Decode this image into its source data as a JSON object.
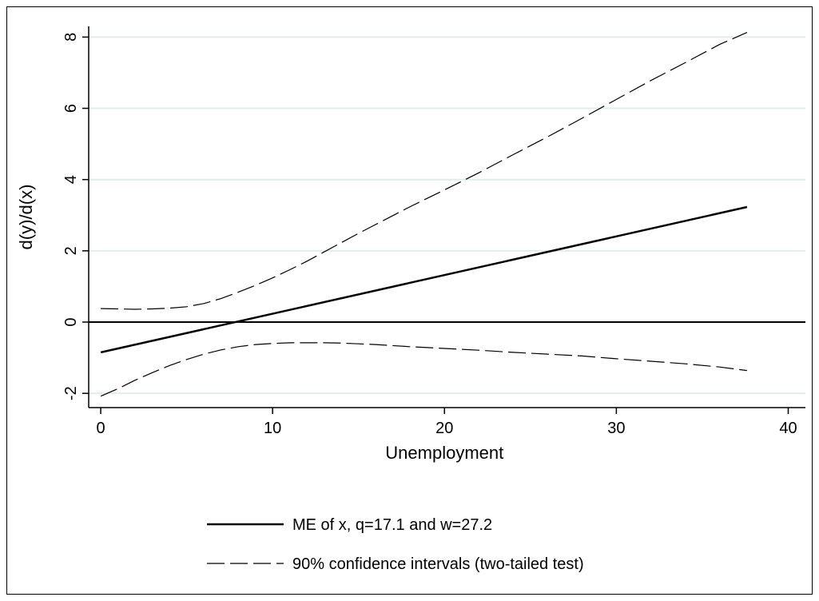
{
  "chart_data": {
    "type": "line",
    "title": "",
    "xlabel": "Unemployment",
    "ylabel": "d(y)/d(x)",
    "xlim": [
      -0.7,
      41
    ],
    "ylim": [
      -2.4,
      8.3
    ],
    "xticks": [
      "0",
      "10",
      "20",
      "30",
      "40"
    ],
    "yticks": [
      "-2",
      "0",
      "2",
      "4",
      "6",
      "8"
    ],
    "grid": "horizontal",
    "reference_line_y": 0,
    "legend_position": "bottom",
    "series": [
      {
        "name": "ME of x, q=17.1 and w=27.2",
        "style": "solid",
        "x": [
          0,
          37.6
        ],
        "y": [
          -0.85,
          3.23
        ]
      },
      {
        "name": "90% confidence intervals (two-tailed test)",
        "style": "dashed",
        "x": [
          0,
          1,
          2,
          3,
          4,
          5,
          6,
          7,
          8,
          9,
          10,
          11,
          12,
          13,
          14,
          15,
          16,
          18,
          20,
          22,
          24,
          26,
          28,
          30,
          32,
          34,
          36,
          37.6
        ],
        "y": [
          0.38,
          0.37,
          0.36,
          0.37,
          0.39,
          0.43,
          0.52,
          0.66,
          0.84,
          1.03,
          1.24,
          1.47,
          1.71,
          1.97,
          2.23,
          2.49,
          2.74,
          3.24,
          3.71,
          4.19,
          4.7,
          5.2,
          5.72,
          6.25,
          6.78,
          7.28,
          7.79,
          8.13
        ]
      },
      {
        "name": "90% confidence intervals (two-tailed test)",
        "style": "dashed",
        "x": [
          0,
          1,
          2,
          3,
          4,
          5,
          6,
          7,
          8,
          9,
          10,
          11,
          12,
          13,
          14,
          15,
          16,
          18,
          20,
          22,
          24,
          26,
          28,
          30,
          32,
          34,
          36,
          37.6
        ],
        "y": [
          -2.08,
          -1.87,
          -1.63,
          -1.42,
          -1.22,
          -1.05,
          -0.9,
          -0.78,
          -0.69,
          -0.63,
          -0.6,
          -0.58,
          -0.58,
          -0.58,
          -0.59,
          -0.61,
          -0.63,
          -0.69,
          -0.74,
          -0.79,
          -0.85,
          -0.9,
          -0.95,
          -1.03,
          -1.1,
          -1.17,
          -1.26,
          -1.36
        ]
      }
    ]
  },
  "legend": {
    "solid_label": "ME of x, q=17.1 and w=27.2",
    "dashed_label": "90% confidence intervals (two-tailed test)"
  }
}
